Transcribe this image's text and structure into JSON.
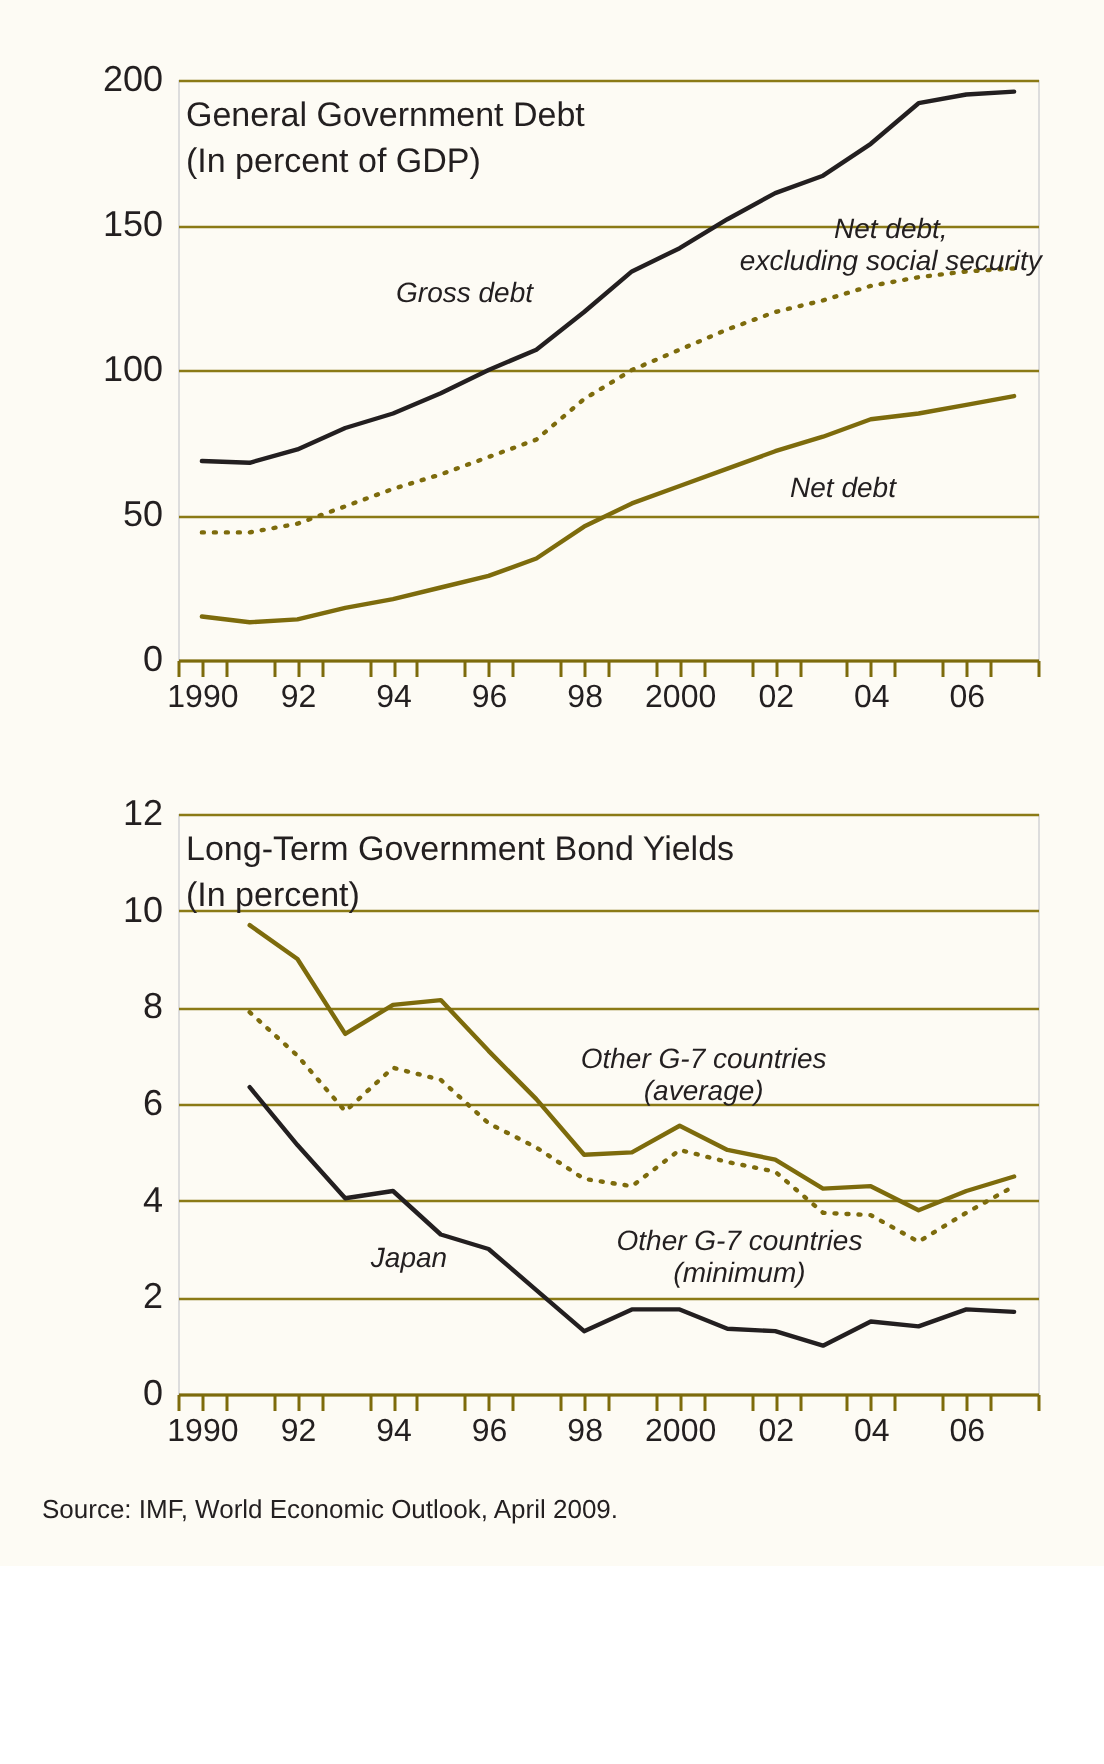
{
  "chart_data": [
    {
      "type": "line",
      "title": "General Government Debt",
      "subtitle": "(In percent of GDP)",
      "x": [
        1990,
        1991,
        1992,
        1993,
        1994,
        1995,
        1996,
        1997,
        1998,
        1999,
        2000,
        2001,
        2002,
        2003,
        2004,
        2005,
        2006,
        2007
      ],
      "series": [
        {
          "name": "Gross debt",
          "color": "#231f20",
          "line_style": "solid",
          "values": [
            68.6,
            68,
            72.6,
            80,
            85,
            92,
            100,
            107,
            120,
            134,
            142,
            152,
            161,
            167,
            178,
            192,
            195,
            196
          ]
        },
        {
          "name": "Net debt,\nexcluding social security",
          "color": "#7d6b0c",
          "line_style": "dotted",
          "values": [
            44,
            44,
            47,
            53,
            59,
            64,
            70,
            76,
            90,
            100,
            107,
            114,
            120,
            124,
            129,
            132,
            134,
            135
          ]
        },
        {
          "name": "Net debt",
          "color": "#7d6b0c",
          "line_style": "solid",
          "values": [
            15,
            13,
            14,
            18,
            21,
            25,
            29,
            35,
            46,
            54,
            60,
            66,
            72,
            77,
            83,
            85,
            88,
            91
          ]
        }
      ],
      "xlim": [
        1989.5,
        2007.5
      ],
      "xticks": [
        {
          "value": 1989.5,
          "label": null
        },
        {
          "value": 1990,
          "label": "1990"
        },
        {
          "value": 1990.5,
          "label": null
        },
        {
          "value": 1991.5,
          "label": null
        },
        {
          "value": 1992,
          "label": "92"
        },
        {
          "value": 1992.5,
          "label": null
        },
        {
          "value": 1993.5,
          "label": null
        },
        {
          "value": 1994,
          "label": "94"
        },
        {
          "value": 1994.5,
          "label": null
        },
        {
          "value": 1995.5,
          "label": null
        },
        {
          "value": 1996,
          "label": "96"
        },
        {
          "value": 1996.5,
          "label": null
        },
        {
          "value": 1997.5,
          "label": null
        },
        {
          "value": 1998,
          "label": "98"
        },
        {
          "value": 1998.5,
          "label": null
        },
        {
          "value": 1999.5,
          "label": null
        },
        {
          "value": 2000,
          "label": "2000"
        },
        {
          "value": 2000.5,
          "label": null
        },
        {
          "value": 2001.5,
          "label": null
        },
        {
          "value": 2002,
          "label": "02"
        },
        {
          "value": 2002.5,
          "label": null
        },
        {
          "value": 2003.5,
          "label": null
        },
        {
          "value": 2004,
          "label": "04"
        },
        {
          "value": 2004.5,
          "label": null
        },
        {
          "value": 2005.5,
          "label": null
        },
        {
          "value": 2006,
          "label": "06"
        },
        {
          "value": 2006.5,
          "label": null
        },
        {
          "value": 2007.5,
          "label": null
        }
      ],
      "ylim": [
        0,
        200
      ],
      "yticks": [
        0,
        50,
        100,
        150,
        200
      ],
      "grid": "y"
    },
    {
      "type": "line",
      "title": "Long-Term Government Bond Yields",
      "subtitle": "(In percent)",
      "x": [
        1991,
        1992,
        1993,
        1994,
        1995,
        1996,
        1997,
        1998,
        1999,
        2000,
        2001,
        2002,
        2003,
        2004,
        2005,
        2006,
        2007
      ],
      "series": [
        {
          "name": "Other G-7 countries\n(average)",
          "color": "#7d6b0c",
          "line_style": "solid",
          "values": [
            9.7,
            9.0,
            7.45,
            8.05,
            8.15,
            7.1,
            6.1,
            4.95,
            5.0,
            5.55,
            5.05,
            4.85,
            4.25,
            4.3,
            3.8,
            4.2,
            4.5
          ]
        },
        {
          "name": "Other G-7 countries\n(minimum)",
          "color": "#7d6b0c",
          "line_style": "dotted",
          "values": [
            7.9,
            7.0,
            5.85,
            6.75,
            6.5,
            5.6,
            5.1,
            4.45,
            4.3,
            5.05,
            4.8,
            4.6,
            3.75,
            3.7,
            3.15,
            3.75,
            4.3
          ]
        },
        {
          "name": "Japan",
          "color": "#231f20",
          "line_style": "solid",
          "values": [
            6.35,
            5.15,
            4.05,
            4.2,
            3.3,
            3.0,
            2.15,
            1.3,
            1.75,
            1.75,
            1.35,
            1.3,
            1.0,
            1.5,
            1.4,
            1.75,
            1.7
          ]
        }
      ],
      "xlim": [
        1989.5,
        2007.5
      ],
      "xticks": [
        {
          "value": 1989.5,
          "label": null
        },
        {
          "value": 1990,
          "label": "1990"
        },
        {
          "value": 1990.5,
          "label": null
        },
        {
          "value": 1991.5,
          "label": null
        },
        {
          "value": 1992,
          "label": "92"
        },
        {
          "value": 1992.5,
          "label": null
        },
        {
          "value": 1993.5,
          "label": null
        },
        {
          "value": 1994,
          "label": "94"
        },
        {
          "value": 1994.5,
          "label": null
        },
        {
          "value": 1995.5,
          "label": null
        },
        {
          "value": 1996,
          "label": "96"
        },
        {
          "value": 1996.5,
          "label": null
        },
        {
          "value": 1997.5,
          "label": null
        },
        {
          "value": 1998,
          "label": "98"
        },
        {
          "value": 1998.5,
          "label": null
        },
        {
          "value": 1999.5,
          "label": null
        },
        {
          "value": 2000,
          "label": "2000"
        },
        {
          "value": 2000.5,
          "label": null
        },
        {
          "value": 2001.5,
          "label": null
        },
        {
          "value": 2002,
          "label": "02"
        },
        {
          "value": 2002.5,
          "label": null
        },
        {
          "value": 2003.5,
          "label": null
        },
        {
          "value": 2004,
          "label": "04"
        },
        {
          "value": 2004.5,
          "label": null
        },
        {
          "value": 2005.5,
          "label": null
        },
        {
          "value": 2006,
          "label": "06"
        },
        {
          "value": 2006.5,
          "label": null
        },
        {
          "value": 2007.5,
          "label": null
        }
      ],
      "ylim": [
        0,
        12
      ],
      "yticks": [
        0,
        2,
        4,
        6,
        8,
        10,
        12
      ],
      "grid": "y",
      "annotations": [
        "Source:  IMF, World Economic Outlook, April 2009."
      ]
    }
  ]
}
